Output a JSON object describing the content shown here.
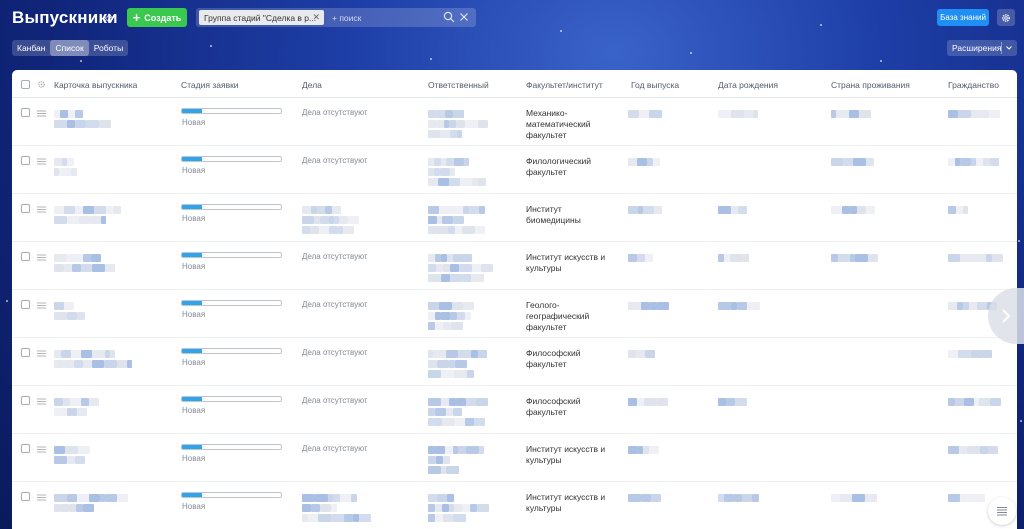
{
  "header": {
    "title": "Выпускники",
    "create_label": "Создать",
    "filter_chip": "Группа стадий \"Сделка в р...",
    "search_placeholder": "+ поиск",
    "knowledge_base_label": "База знаний"
  },
  "views": [
    {
      "label": "Канбан",
      "active": false
    },
    {
      "label": "Список",
      "active": true
    },
    {
      "label": "Роботы",
      "active": false
    }
  ],
  "extensions_label": "Расширения",
  "table": {
    "columns": [
      "Карточка выпускника",
      "Стадия заявки",
      "Дела",
      "Ответственный",
      "Факультет/институт",
      "Год выпуска",
      "Дата рождения",
      "Страна проживания",
      "Гражданство"
    ],
    "rows": [
      {
        "stage": "Новая",
        "stage_progress": 0.2,
        "deals": "Дела отсутствуют",
        "faculty": "Механико-математический факультет"
      },
      {
        "stage": "Новая",
        "stage_progress": 0.2,
        "deals": "Дела отсутствуют",
        "faculty": "Филологический факультет"
      },
      {
        "stage": "Новая",
        "stage_progress": 0.2,
        "deals": "",
        "faculty": "Институт биомедицины"
      },
      {
        "stage": "Новая",
        "stage_progress": 0.2,
        "deals": "Дела отсутствуют",
        "faculty": "Институт искусств и культуры"
      },
      {
        "stage": "Новая",
        "stage_progress": 0.2,
        "deals": "Дела отсутствуют",
        "faculty": "Геолого-географический факультет"
      },
      {
        "stage": "Новая",
        "stage_progress": 0.2,
        "deals": "Дела отсутствуют",
        "faculty": "Философский факультет"
      },
      {
        "stage": "Новая",
        "stage_progress": 0.2,
        "deals": "Дела отсутствуют",
        "faculty": "Философский факультет"
      },
      {
        "stage": "Новая",
        "stage_progress": 0.2,
        "deals": "Дела отсутствуют",
        "faculty": "Институт искусств и культуры"
      },
      {
        "stage": "Новая",
        "stage_progress": 0.2,
        "deals": "",
        "faculty": "Институт искусств и культуры"
      }
    ]
  },
  "colors": {
    "accent_green": "#3bc84e",
    "accent_blue": "#1f8ef5",
    "stage_fill": "#2fa4ea"
  },
  "icons": [
    "pin-icon",
    "plus-icon",
    "search-icon",
    "close-icon",
    "gear-icon",
    "drag-handle-icon",
    "chevron-right-icon",
    "chevron-down-icon",
    "list-icon"
  ]
}
